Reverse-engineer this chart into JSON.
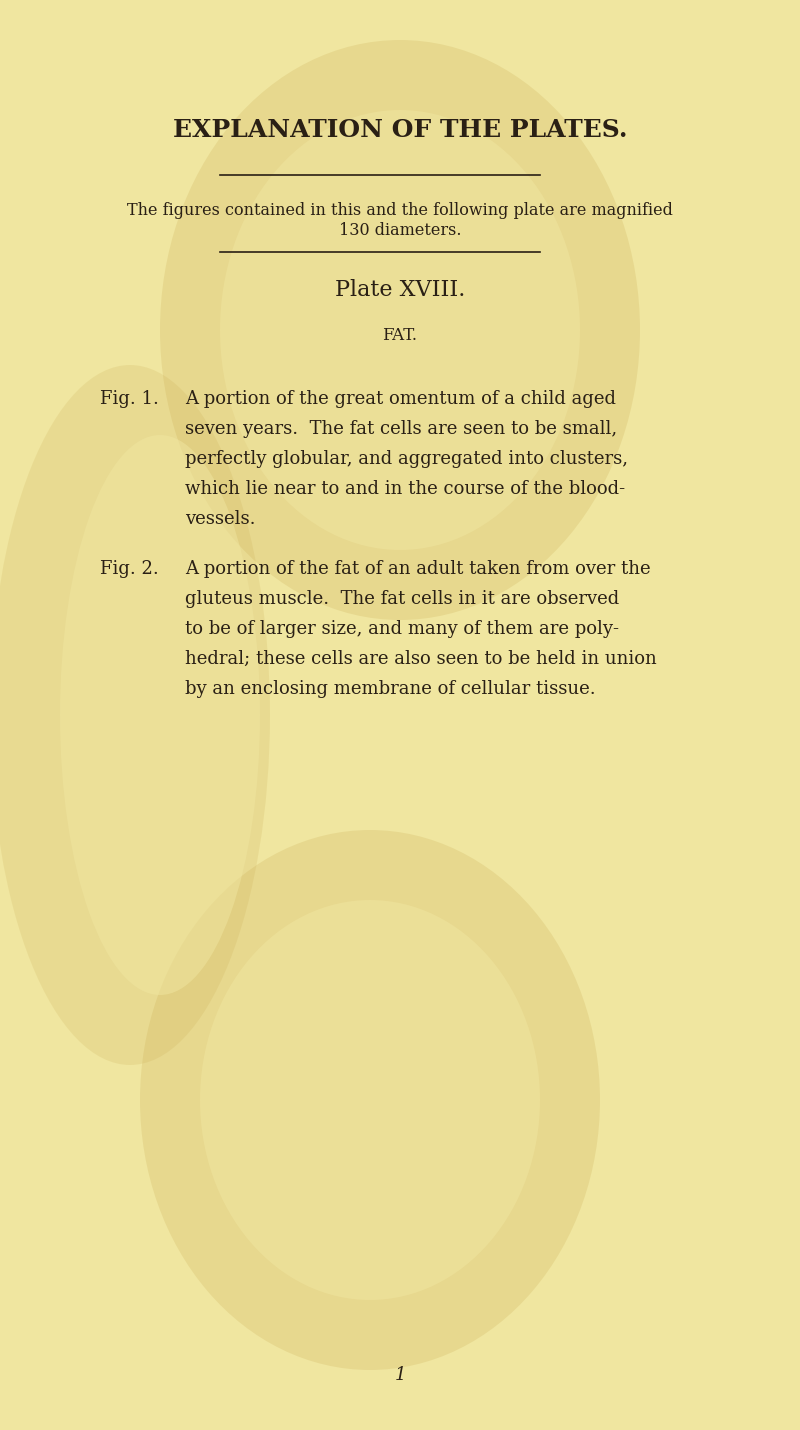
{
  "bg_color": "#f0e6a0",
  "text_color": "#2a2015",
  "title": "EXPLANATION OF THE PLATES.",
  "subtitle_line1": "The figures contained in this and the following plate are magnified",
  "subtitle_line2": "130 diameters.",
  "plate_title": "Plate XVIII.",
  "section_title": "fat.",
  "fig1_label": "Fig. 1.",
  "fig1_text": "A portion of the great omentum of a child aged\nseven years.  The fat cells are seen to be small,\nperfectly globular, and aggregated into clusters,\nwhich lie near to and in the course of the blood-\nvessels.",
  "fig2_label": "Fig. 2.",
  "fig2_text": "A portion of the fat of an adult taken from over the\ngluteus muscle.  The fat cells in it are observed\nto be of larger size, and many of them are poly-\nhedral; these cells are also seen to be held in union\nby an enclosing membrane of cellular tissue.",
  "page_number": "1",
  "watermark_color": "#c8a850",
  "watermark_alpha": 0.35
}
